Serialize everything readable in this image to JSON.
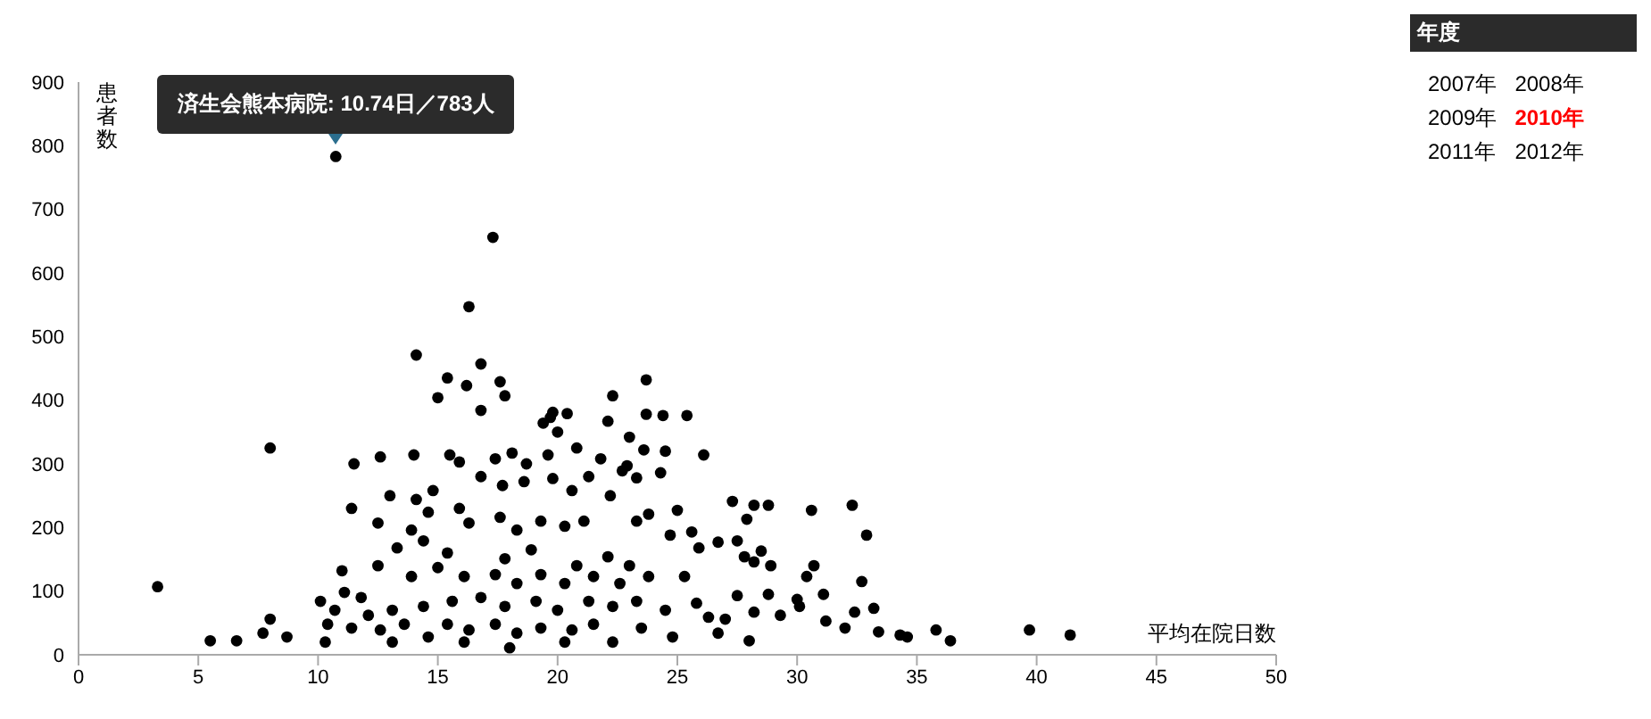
{
  "chart_data": {
    "type": "scatter",
    "xlabel": "平均在院日数",
    "ylabel": "患者数",
    "legend_title": "年度",
    "xlim": [
      0,
      50
    ],
    "xticks": [
      0,
      5,
      10,
      15,
      20,
      25,
      30,
      35,
      40,
      45,
      50
    ],
    "ylim": [
      0,
      900
    ],
    "yticks": [
      0,
      100,
      200,
      300,
      400,
      500,
      600,
      700,
      800,
      900
    ],
    "marker": "circle",
    "annotations": [
      {
        "text": "済生会熊本病院: 10.74日／783人",
        "x": 10.74,
        "y": 783
      },
      "2007年",
      "2008年",
      "2009年",
      "2010年",
      "2011年",
      "2012年"
    ],
    "series": [
      {
        "color": "#000000",
        "x": [
          3.3,
          5.5,
          6.6,
          7.7,
          8.0,
          8.7,
          8.0,
          10.74,
          17.3,
          16.3,
          14.1,
          16.8,
          15.4,
          16.2,
          17.6,
          17.8,
          15.0,
          23.7,
          24.4,
          22.3,
          20.4,
          19.7,
          25.4,
          26.1,
          32.3,
          30.6,
          32.9,
          33.4,
          34.3,
          34.6,
          35.8,
          36.4,
          39.7,
          41.4,
          32.7,
          32.4,
          33.2,
          32.0,
          31.2,
          31.1,
          30.7,
          30.4,
          30.0,
          30.1,
          27.3,
          28.2,
          28.8,
          27.9,
          28.9,
          28.5,
          28.2,
          27.5,
          27.8,
          27.5,
          28.2,
          28.0,
          28.8,
          29.3,
          26.7,
          26.3,
          27.0,
          22.1,
          23.0,
          23.6,
          24.5,
          22.7,
          23.3,
          24.3,
          25.0,
          23.8,
          24.7,
          25.6,
          25.9,
          26.7,
          16.8,
          19.8,
          19.4,
          20.0,
          23.7,
          11.5,
          12.6,
          14.0,
          15.5,
          15.9,
          17.4,
          18.1,
          18.7,
          19.6,
          20.8,
          21.8,
          22.9,
          11.4,
          13.0,
          12.5,
          14.1,
          14.8,
          16.8,
          17.7,
          18.6,
          19.8,
          20.6,
          21.3,
          22.2,
          13.9,
          14.6,
          15.9,
          16.3,
          17.6,
          18.3,
          19.3,
          20.3,
          21.1,
          23.3,
          13.3,
          14.4,
          15.4,
          17.8,
          18.9,
          20.8,
          22.1,
          23.0,
          11.0,
          11.1,
          12.5,
          13.9,
          15.0,
          16.1,
          17.4,
          18.3,
          19.3,
          20.3,
          21.5,
          22.6,
          23.8,
          25.3,
          10.1,
          10.7,
          11.8,
          12.1,
          13.1,
          14.4,
          15.6,
          16.8,
          17.8,
          19.1,
          20.0,
          21.3,
          22.3,
          23.3,
          24.5,
          25.8,
          10.4,
          11.4,
          12.6,
          13.6,
          14.6,
          15.4,
          16.3,
          17.4,
          18.3,
          19.3,
          20.6,
          21.5,
          22.3,
          23.5,
          24.8,
          10.3,
          18.0,
          13.1,
          16.1,
          20.3
        ],
        "values": [
          107,
          22,
          22,
          34,
          56,
          28,
          325,
          783,
          656,
          547,
          471,
          457,
          435,
          423,
          429,
          407,
          404,
          432,
          376,
          407,
          379,
          373,
          376,
          314,
          235,
          227,
          188,
          36,
          31,
          28,
          39,
          22,
          39,
          31,
          115,
          67,
          73,
          42,
          53,
          95,
          140,
          123,
          87,
          76,
          241,
          235,
          235,
          213,
          140,
          163,
          146,
          179,
          154,
          93,
          67,
          22,
          95,
          62,
          34,
          59,
          56,
          367,
          342,
          322,
          320,
          289,
          278,
          286,
          227,
          221,
          188,
          193,
          168,
          177,
          384,
          381,
          364,
          350,
          378,
          300,
          311,
          314,
          314,
          303,
          308,
          317,
          300,
          314,
          325,
          308,
          297,
          230,
          250,
          207,
          244,
          258,
          280,
          266,
          272,
          277,
          258,
          280,
          250,
          196,
          224,
          230,
          207,
          216,
          196,
          210,
          202,
          210,
          210,
          168,
          179,
          160,
          151,
          165,
          140,
          154,
          140,
          132,
          98,
          140,
          123,
          137,
          123,
          126,
          112,
          126,
          112,
          123,
          112,
          123,
          123,
          84,
          70,
          90,
          62,
          70,
          76,
          84,
          90,
          76,
          84,
          70,
          84,
          76,
          84,
          70,
          81,
          48,
          42,
          39,
          48,
          28,
          48,
          39,
          48,
          34,
          42,
          39,
          48,
          20,
          42,
          28,
          20,
          11,
          20,
          20,
          20
        ]
      }
    ]
  }
}
